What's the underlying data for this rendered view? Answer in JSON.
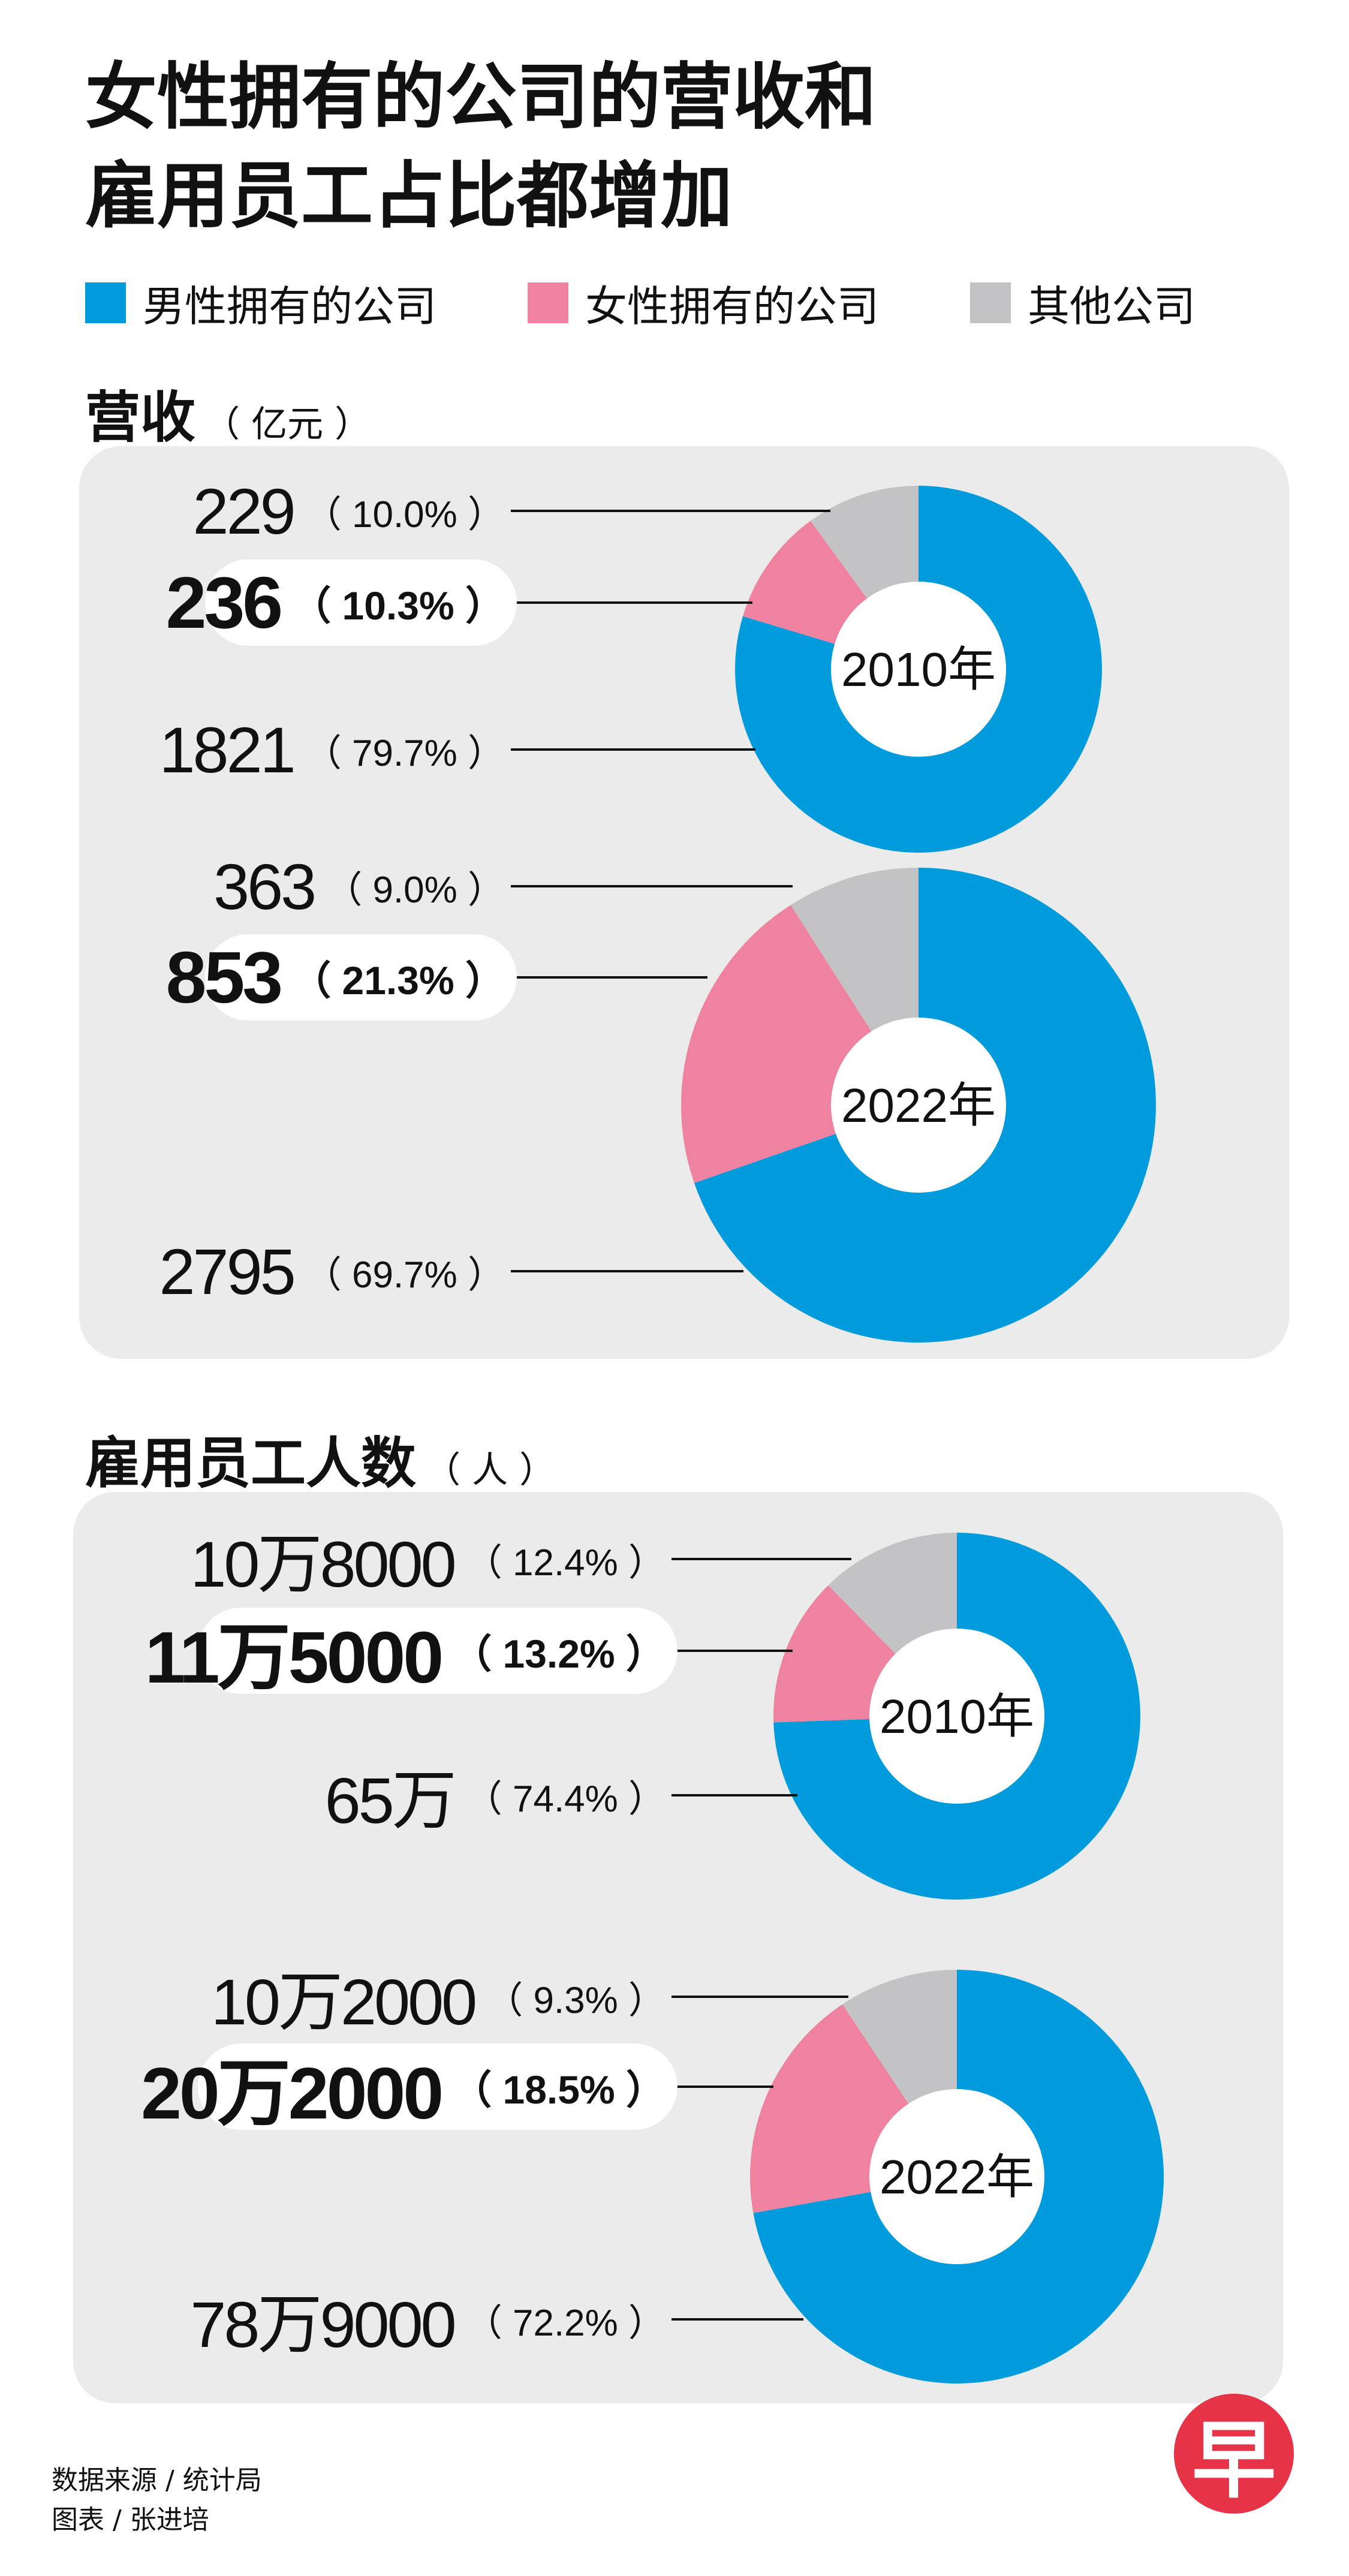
{
  "title": {
    "line1": "女性拥有的公司的营收和",
    "line2": "雇用员工占比都增加"
  },
  "legend": [
    {
      "label": "男性拥有的公司",
      "color": "#009bdc"
    },
    {
      "label": "女性拥有的公司",
      "color": "#ef82a0"
    },
    {
      "label": "其他公司",
      "color": "#c3c3c6"
    }
  ],
  "colors": {
    "male": "#009bdc",
    "female": "#ef82a0",
    "other": "#c3c3c6",
    "panel": "#ebebeb"
  },
  "sections": [
    {
      "title": "营收",
      "unit": "（ 亿元 ）",
      "charts": [
        {
          "center_label": "2010年",
          "labels": [
            {
              "value": "229",
              "percent": "（ 10.0% ）",
              "bold": false
            },
            {
              "value": "236",
              "percent": "（ 10.3% ）",
              "bold": true
            },
            {
              "value": "1821",
              "percent": "（ 79.7% ）",
              "bold": false
            }
          ]
        },
        {
          "center_label": "2022年",
          "labels": [
            {
              "value": "363",
              "percent": "（ 9.0% ）",
              "bold": false
            },
            {
              "value": "853",
              "percent": "（ 21.3% ）",
              "bold": true
            },
            {
              "value": "2795",
              "percent": "（ 69.7% ）",
              "bold": false
            }
          ]
        }
      ]
    },
    {
      "title": "雇用员工人数",
      "unit": "（ 人 ）",
      "charts": [
        {
          "center_label": "2010年",
          "labels": [
            {
              "value": "10万8000",
              "percent": "（ 12.4% ）",
              "bold": false
            },
            {
              "value": "11万5000",
              "percent": "（ 13.2% ）",
              "bold": true
            },
            {
              "value": "65万",
              "percent": "（ 74.4% ）",
              "bold": false
            }
          ]
        },
        {
          "center_label": "2022年",
          "labels": [
            {
              "value": "10万2000",
              "percent": "（ 9.3% ）",
              "bold": false
            },
            {
              "value": "20万2000",
              "percent": "（ 18.5% ）",
              "bold": true
            },
            {
              "value": "78万9000",
              "percent": "（ 72.2% ）",
              "bold": false
            }
          ]
        }
      ]
    }
  ],
  "chart_data": [
    {
      "type": "pie",
      "categories": [
        "男性拥有的公司",
        "女性拥有的公司",
        "其他公司"
      ],
      "values": [
        1821,
        236,
        229
      ],
      "percentages": [
        79.7,
        10.3,
        10.0
      ],
      "center_label": "2010年"
    },
    {
      "type": "pie",
      "categories": [
        "男性拥有的公司",
        "女性拥有的公司",
        "其他公司"
      ],
      "values": [
        2795,
        853,
        363
      ],
      "percentages": [
        69.7,
        21.3,
        9.0
      ],
      "center_label": "2022年"
    },
    {
      "type": "pie",
      "categories": [
        "男性拥有的公司",
        "女性拥有的公司",
        "其他公司"
      ],
      "values": [
        650000,
        115000,
        108000
      ],
      "percentages": [
        74.4,
        13.2,
        12.4
      ],
      "center_label": "2010年"
    },
    {
      "type": "pie",
      "categories": [
        "男性拥有的公司",
        "女性拥有的公司",
        "其他公司"
      ],
      "values": [
        789000,
        202000,
        102000
      ],
      "percentages": [
        72.2,
        18.5,
        9.3
      ],
      "center_label": "2022年"
    }
  ],
  "footer": {
    "source": "数据来源 / 统计局",
    "credit": "图表 / 张进培"
  },
  "logo": {
    "text": "早"
  }
}
